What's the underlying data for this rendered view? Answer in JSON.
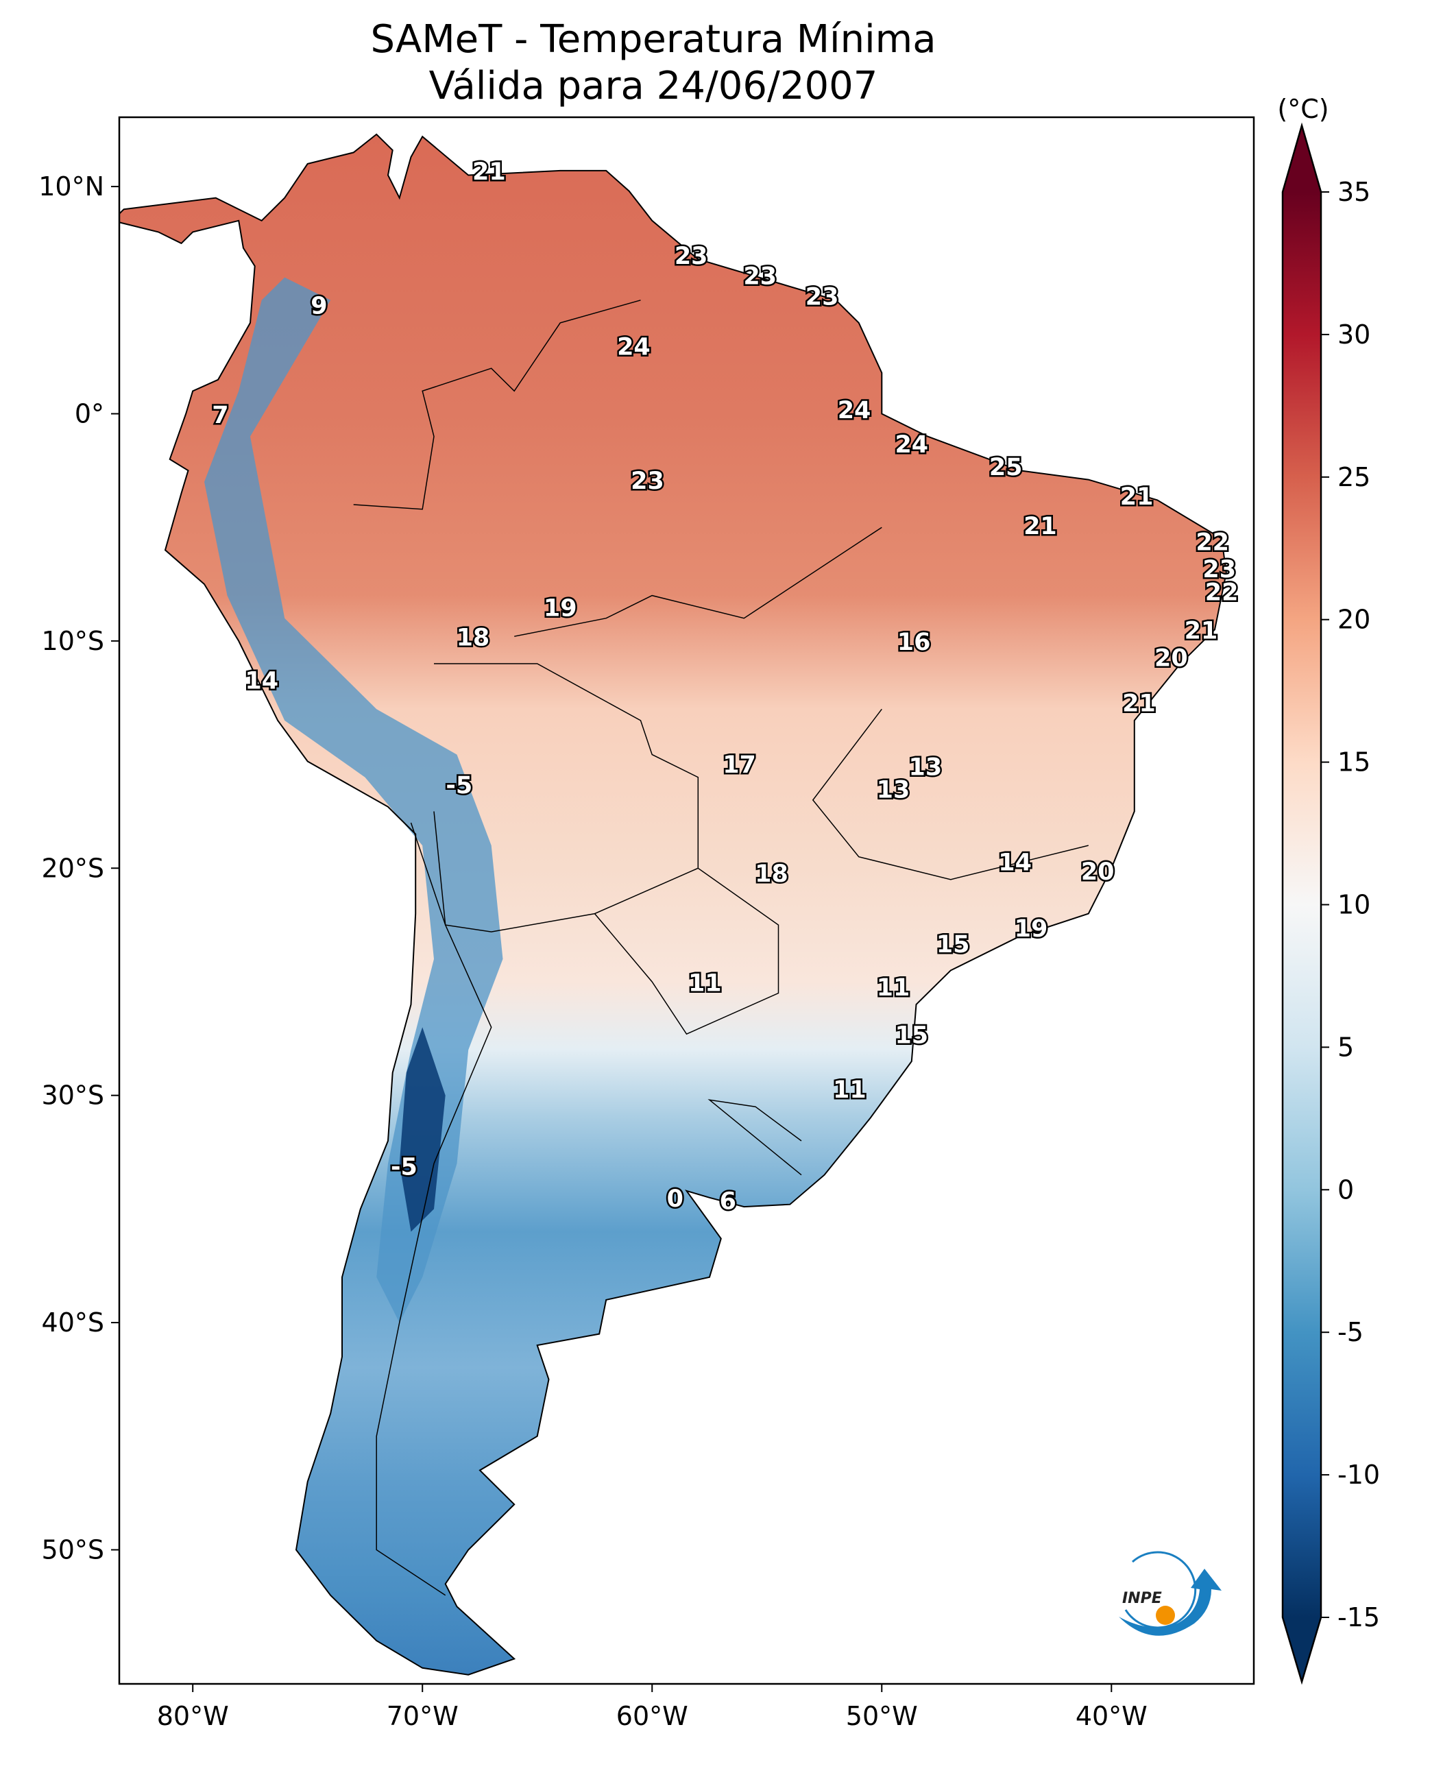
{
  "title": "SAMeT - Temperatura Mínima",
  "subtitle": "Válida para 24/06/2007",
  "colorbar": {
    "unit_label": "(°C)",
    "range": [
      -15,
      35
    ],
    "ticks": [
      "35",
      "30",
      "25",
      "20",
      "15",
      "10",
      "5",
      "0",
      "-5",
      "-10",
      "-15"
    ],
    "tick_values": [
      35,
      30,
      25,
      20,
      15,
      10,
      5,
      0,
      -5,
      -10,
      -15
    ],
    "colormap": [
      "#053061",
      "#2166ac",
      "#4393c3",
      "#92c5de",
      "#d1e5f0",
      "#f7f7f7",
      "#fddbc7",
      "#f4a582",
      "#d6604d",
      "#b2182b",
      "#67001f"
    ]
  },
  "axes": {
    "lon_range": [
      -83.2,
      -33.8
    ],
    "lat_range": [
      -55.9,
      13.05
    ],
    "x_ticks": [
      {
        "v": -80,
        "t": "80°W"
      },
      {
        "v": -70,
        "t": "70°W"
      },
      {
        "v": -60,
        "t": "60°W"
      },
      {
        "v": -50,
        "t": "50°W"
      },
      {
        "v": -40,
        "t": "40°W"
      }
    ],
    "y_ticks": [
      {
        "v": 10,
        "t": "10°N"
      },
      {
        "v": 0,
        "t": "0°"
      },
      {
        "v": -10,
        "t": "10°S"
      },
      {
        "v": -20,
        "t": "20°S"
      },
      {
        "v": -30,
        "t": "30°S"
      },
      {
        "v": -40,
        "t": "40°S"
      },
      {
        "v": -50,
        "t": "50°S"
      }
    ]
  },
  "chart_data": {
    "type": "heatmap",
    "title": "SAMeT - Temperatura Mínima / Válida para 24/06/2007",
    "variable": "Minimum temperature (°C)",
    "station_labels": [
      {
        "lon": -67.1,
        "lat": 10.6,
        "v": "21"
      },
      {
        "lon": -74.5,
        "lat": 4.7,
        "v": "9"
      },
      {
        "lon": -78.8,
        "lat": -0.1,
        "v": "7"
      },
      {
        "lon": -60.8,
        "lat": 2.9,
        "v": "24"
      },
      {
        "lon": -58.3,
        "lat": 6.9,
        "v": "23"
      },
      {
        "lon": -55.3,
        "lat": 6.0,
        "v": "23"
      },
      {
        "lon": -52.6,
        "lat": 5.1,
        "v": "23"
      },
      {
        "lon": -51.2,
        "lat": 0.1,
        "v": "24"
      },
      {
        "lon": -48.7,
        "lat": -1.4,
        "v": "24"
      },
      {
        "lon": -44.6,
        "lat": -2.4,
        "v": "25"
      },
      {
        "lon": -38.9,
        "lat": -3.7,
        "v": "21"
      },
      {
        "lon": -43.1,
        "lat": -5.0,
        "v": "21"
      },
      {
        "lon": -35.6,
        "lat": -5.7,
        "v": "22"
      },
      {
        "lon": -35.3,
        "lat": -6.9,
        "v": "23"
      },
      {
        "lon": -35.2,
        "lat": -7.9,
        "v": "22"
      },
      {
        "lon": -60.2,
        "lat": -3.0,
        "v": "23"
      },
      {
        "lon": -64.0,
        "lat": -8.6,
        "v": "19"
      },
      {
        "lon": -67.8,
        "lat": -9.9,
        "v": "18"
      },
      {
        "lon": -48.6,
        "lat": -10.1,
        "v": "16"
      },
      {
        "lon": -36.1,
        "lat": -9.6,
        "v": "21"
      },
      {
        "lon": -37.4,
        "lat": -10.8,
        "v": "20"
      },
      {
        "lon": -38.8,
        "lat": -12.8,
        "v": "21"
      },
      {
        "lon": -77.0,
        "lat": -11.8,
        "v": "14"
      },
      {
        "lon": -56.2,
        "lat": -15.5,
        "v": "17"
      },
      {
        "lon": -48.1,
        "lat": -15.6,
        "v": "13"
      },
      {
        "lon": -49.5,
        "lat": -16.6,
        "v": "13"
      },
      {
        "lon": -68.4,
        "lat": -16.4,
        "v": "-5"
      },
      {
        "lon": -44.2,
        "lat": -19.8,
        "v": "14"
      },
      {
        "lon": -40.6,
        "lat": -20.2,
        "v": "20"
      },
      {
        "lon": -54.8,
        "lat": -20.3,
        "v": "18"
      },
      {
        "lon": -43.5,
        "lat": -22.7,
        "v": "19"
      },
      {
        "lon": -46.9,
        "lat": -23.4,
        "v": "15"
      },
      {
        "lon": -57.7,
        "lat": -25.1,
        "v": "11"
      },
      {
        "lon": -49.5,
        "lat": -25.3,
        "v": "11"
      },
      {
        "lon": -48.7,
        "lat": -27.4,
        "v": "15"
      },
      {
        "lon": -51.4,
        "lat": -29.8,
        "v": "11"
      },
      {
        "lon": -70.8,
        "lat": -33.2,
        "v": "-5"
      },
      {
        "lon": -59.0,
        "lat": -34.6,
        "v": "0"
      },
      {
        "lon": -56.7,
        "lat": -34.7,
        "v": "6"
      }
    ]
  },
  "logo": {
    "text": "INPE"
  }
}
